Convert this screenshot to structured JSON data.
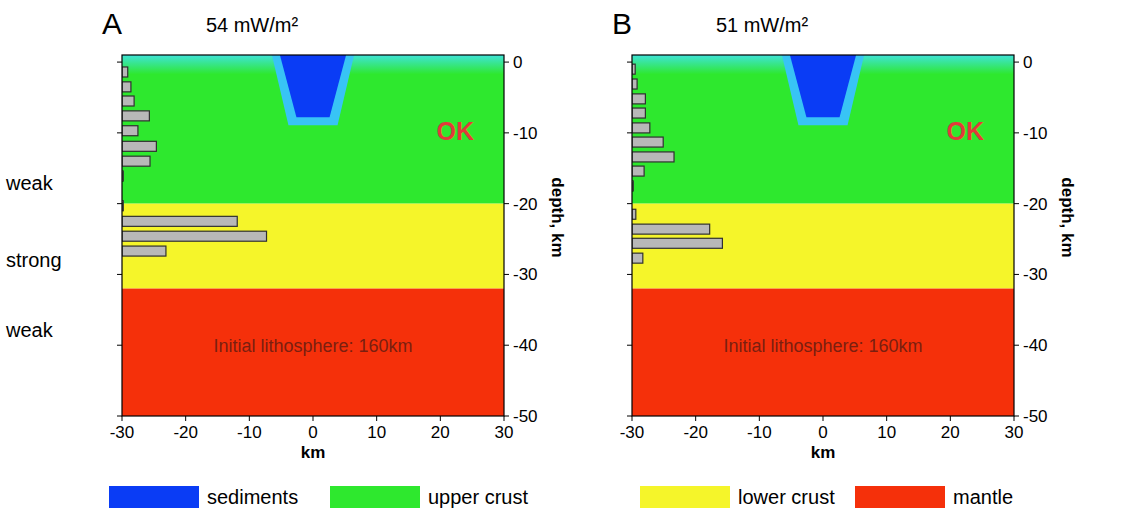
{
  "chart_data": [
    {
      "type": "bar",
      "orientation": "horizontal",
      "panel": "A",
      "title": "54 mW/m²",
      "annotations": [
        "OK",
        "Initial lithosphere: 160km"
      ],
      "x_label": "km",
      "y_label": "depth, km",
      "x": [
        -1.4,
        -3.5,
        -5.5,
        -7.6,
        -9.7,
        -11.9,
        -14.0,
        -16.1,
        -20.3,
        -22.5,
        -24.6,
        -26.7
      ],
      "values": [
        0.9,
        1.4,
        1.9,
        4.3,
        2.5,
        5.4,
        4.4,
        0.2,
        0.2,
        18.1,
        22.7,
        6.9
      ],
      "color": "#b8b8b8",
      "xlim": [
        -30,
        30
      ],
      "xticks": [
        -30,
        -20,
        -10,
        0,
        10,
        20,
        30
      ],
      "ylim": [
        -50,
        1
      ],
      "yticks": [
        0,
        -10,
        -20,
        -30,
        -40,
        -50
      ],
      "upper_crust_base": -20,
      "moho": -32,
      "basin": {
        "top": [
          -5.2,
          5.2
        ],
        "bottom": [
          -2.6,
          2.6
        ],
        "depth": -7.8
      }
    },
    {
      "type": "bar",
      "orientation": "horizontal",
      "panel": "B",
      "title": "51 mW/m²",
      "annotations": [
        "OK",
        "Initial  lithosphere: 160km"
      ],
      "x_label": "km",
      "y_label": "depth, km",
      "x": [
        -1.0,
        -3.1,
        -5.2,
        -7.2,
        -9.3,
        -11.3,
        -13.4,
        -15.4,
        -17.5,
        -21.5,
        -23.6,
        -25.6,
        -27.7
      ],
      "values": [
        0.5,
        0.8,
        2.1,
        2.1,
        2.8,
        4.9,
        6.6,
        1.9,
        0.2,
        0.6,
        12.2,
        14.2,
        1.7
      ],
      "color": "#b8b8b8",
      "xlim": [
        -30,
        30
      ],
      "xticks": [
        -30,
        -20,
        -10,
        0,
        10,
        20,
        30
      ],
      "ylim": [
        -50,
        1
      ],
      "yticks": [
        0,
        -10,
        -20,
        -30,
        -40,
        -50
      ],
      "upper_crust_base": -20,
      "moho": -32,
      "basin": {
        "top": [
          -5.2,
          5.2
        ],
        "bottom": [
          -2.6,
          2.6
        ],
        "depth": -7.8
      }
    }
  ],
  "side_labels": [
    "weak",
    "strong",
    "weak"
  ],
  "legend_items": [
    {
      "name": "sediments",
      "color": "#0a3cf5"
    },
    {
      "name": "upper crust",
      "color": "#2ee82e"
    },
    {
      "name": "lower crust",
      "color": "#f5f52a"
    },
    {
      "name": "mantle",
      "color": "#f5300a"
    }
  ]
}
